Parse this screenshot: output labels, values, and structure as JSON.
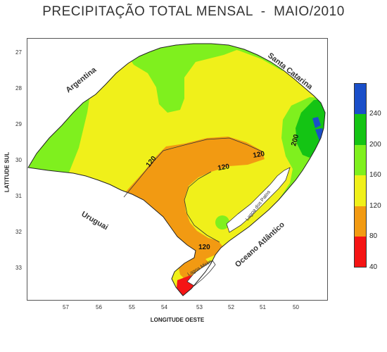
{
  "title": "PRECIPITAÇÃO TOTAL MENSAL  -  MAIO/2010",
  "axes": {
    "y_label": "LATITUDE SUL",
    "x_label": "LONGITUDE OESTE",
    "y_ticks": [
      "27",
      "28",
      "29",
      "30",
      "31",
      "32",
      "33"
    ],
    "x_ticks": [
      "57",
      "56",
      "55",
      "54",
      "53",
      "52",
      "51",
      "50"
    ]
  },
  "regions": {
    "argentina": "Argentina",
    "santa_catarina": "Santa Catarina",
    "uruguai": "Uruguai",
    "oceano": "Oceano Atlântico",
    "lagoa_patos": "Lagoa dos Patos",
    "lagoa_mirim": "Lagoa Mirim"
  },
  "contour_labels": {
    "c120_west": "120",
    "c120_center": "120",
    "c120_east": "120",
    "c120_south": "120",
    "c200": "200"
  },
  "legend": {
    "labels": [
      "240",
      "200",
      "160",
      "120",
      "80",
      "40"
    ],
    "colors": {
      "c200_240": "#1a4fc9",
      "c160_200": "#14c414",
      "c120_160": "#7ff01e",
      "c80_120": "#f0f01a",
      "c40_80": "#f29a12",
      "c0_40": "#f51414"
    }
  }
}
